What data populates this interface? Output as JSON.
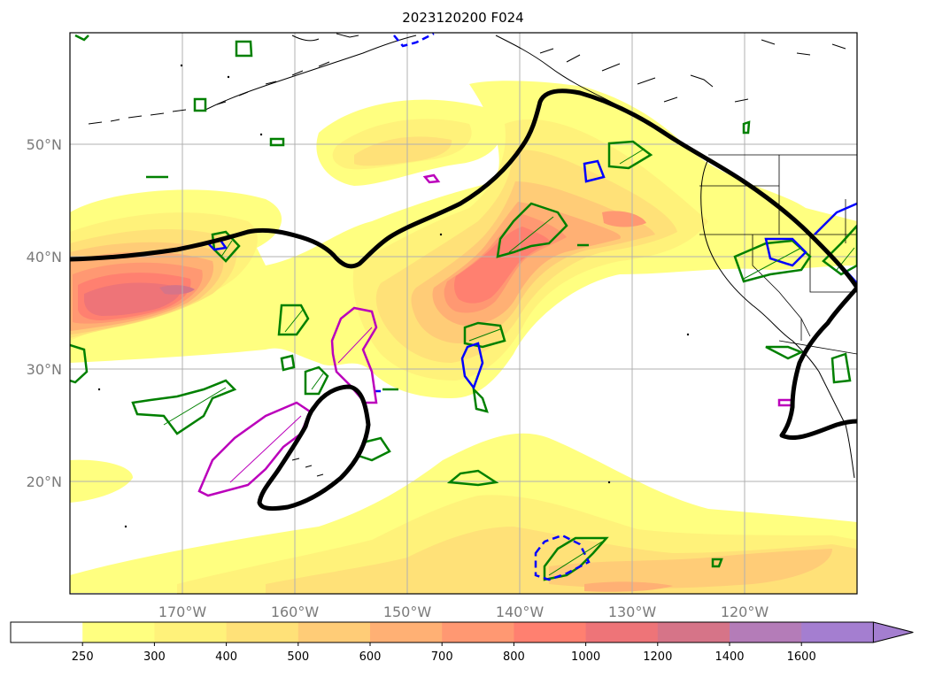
{
  "title": "2023120200 F024",
  "map": {
    "lat_range": [
      10,
      60
    ],
    "lon_range": [
      -180,
      -110
    ],
    "gridlines": true,
    "lat_labels": [
      {
        "lat": 20,
        "text": "20°N"
      },
      {
        "lat": 30,
        "text": "30°N"
      },
      {
        "lat": 40,
        "text": "40°N"
      },
      {
        "lat": 50,
        "text": "50°N"
      }
    ],
    "lon_labels": [
      {
        "lon": -170,
        "text": "170°W"
      },
      {
        "lon": -160,
        "text": "160°W"
      },
      {
        "lon": -150,
        "text": "150°W"
      },
      {
        "lon": -140,
        "text": "140°W"
      },
      {
        "lon": -130,
        "text": "130°W"
      },
      {
        "lon": -120,
        "text": "120°W"
      }
    ]
  },
  "colorbar": {
    "extend": "max",
    "ticks": [
      "250",
      "300",
      "400",
      "500",
      "600",
      "700",
      "800",
      "1000",
      "1200",
      "1400",
      "1600"
    ],
    "colors": [
      "#ffffff",
      "#ffff80",
      "#fff27a",
      "#ffe178",
      "#ffcc77",
      "#ffb074",
      "#ff9872",
      "#ff8070",
      "#ee7478",
      "#d67488",
      "#b47cb8",
      "#a47ed0"
    ]
  },
  "colors": {
    "ivt_contour": "#000000",
    "green_contour": "#008000",
    "blue_contour": "#0000ff",
    "magenta_contour": "#bb00bb"
  }
}
